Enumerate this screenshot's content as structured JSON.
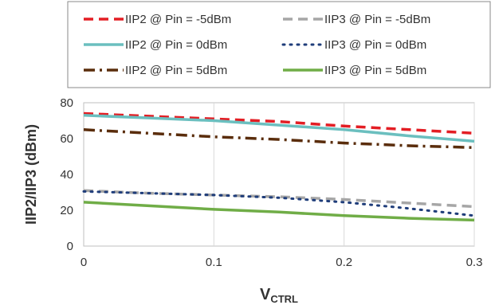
{
  "chart_data": {
    "type": "line",
    "xlabel": "V",
    "xlabel_sub": "CTRL",
    "ylabel": "IIP2/IIP3 (dBm)",
    "xlim": [
      0,
      0.3
    ],
    "ylim": [
      0,
      80
    ],
    "x_ticks": [
      "0",
      "0.1",
      "0.2",
      "0.3"
    ],
    "y_ticks": [
      "0",
      "20",
      "40",
      "60",
      "80"
    ],
    "grid": "vertical",
    "legend_position": "top",
    "series": [
      {
        "name": "IIP2 @ Pin = -5dBm",
        "color": "#e31e24",
        "style": "dashed",
        "x": [
          0,
          0.05,
          0.1,
          0.15,
          0.2,
          0.25,
          0.3
        ],
        "y": [
          74,
          72.5,
          71,
          69.5,
          67,
          65,
          63
        ]
      },
      {
        "name": "IIP3 @ Pin = -5dBm",
        "color": "#a6a6a6",
        "style": "dashed",
        "x": [
          0,
          0.05,
          0.1,
          0.15,
          0.2,
          0.25,
          0.3
        ],
        "y": [
          31,
          29.5,
          28.5,
          27.5,
          26,
          24,
          22
        ]
      },
      {
        "name": "IIP2 @ Pin = 0dBm",
        "color": "#6bbfbf",
        "style": "solid",
        "x": [
          0,
          0.05,
          0.1,
          0.15,
          0.2,
          0.25,
          0.3
        ],
        "y": [
          73,
          71.5,
          70,
          67.5,
          65,
          61.5,
          58.5
        ]
      },
      {
        "name": "IIP3 @ Pin = 0dBm",
        "color": "#1f3d7a",
        "style": "dotted",
        "x": [
          0,
          0.05,
          0.1,
          0.15,
          0.2,
          0.25,
          0.3
        ],
        "y": [
          30.5,
          29.5,
          28.5,
          27,
          24.5,
          21,
          17
        ]
      },
      {
        "name": "IIP2 @ Pin = 5dBm",
        "color": "#5a2d0c",
        "style": "dashdot",
        "x": [
          0,
          0.05,
          0.1,
          0.15,
          0.2,
          0.25,
          0.3
        ],
        "y": [
          65,
          63,
          61,
          59.5,
          57.5,
          56,
          55
        ]
      },
      {
        "name": "IIP3 @ Pin = 5dBm",
        "color": "#70ad47",
        "style": "solid",
        "x": [
          0,
          0.05,
          0.1,
          0.15,
          0.2,
          0.25,
          0.3
        ],
        "y": [
          24.5,
          22.5,
          20.5,
          19,
          17,
          15.5,
          14.5
        ]
      }
    ]
  }
}
